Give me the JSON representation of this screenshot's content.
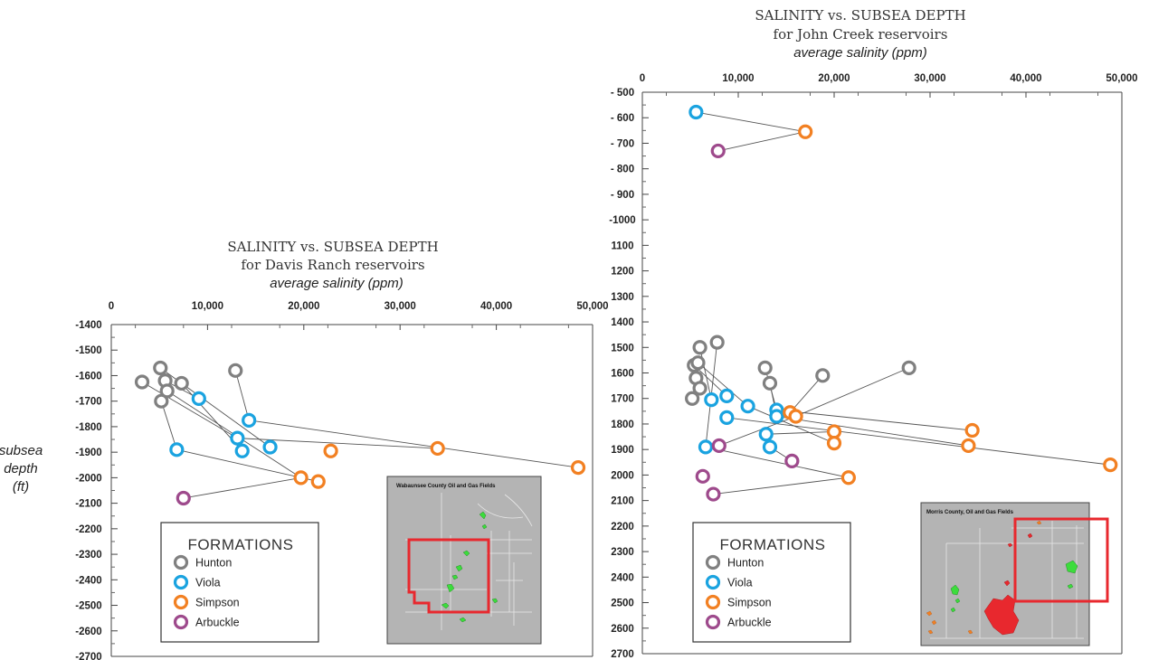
{
  "ylabel_lines": [
    "subsea",
    "depth",
    "(ft)"
  ],
  "colors": {
    "Hunton": "#808080",
    "Viola": "#1aa3e0",
    "Simpson": "#f28022",
    "Arbuckle": "#9e4a8c",
    "map_bg": "#b4b4b4",
    "map_highlight": "#e8282e",
    "field_green": "#3cdc3c"
  },
  "legend": {
    "title": "FORMATIONS",
    "items": [
      "Hunton",
      "Viola",
      "Simpson",
      "Arbuckle"
    ]
  },
  "chart_data": [
    {
      "type": "scatter",
      "title": "SALINITY vs. SUBSEA DEPTH",
      "subtitle": "for Davis Ranch reservoirs",
      "xlabel": "average salinity (ppm)",
      "ylabel": "subsea depth (ft)",
      "xlim": [
        0,
        50000
      ],
      "ylim": [
        -2700,
        -1400
      ],
      "x_ticks": [
        0,
        10000,
        20000,
        30000,
        40000,
        50000
      ],
      "x_tick_labels": [
        "0",
        "10,000",
        "20,000",
        "30,000",
        "40,000",
        "50,000"
      ],
      "y_ticks": [
        -1400,
        -1500,
        -1600,
        -1700,
        -1800,
        -1900,
        -2000,
        -2100,
        -2200,
        -2300,
        -2400,
        -2500,
        -2600,
        -2700
      ],
      "y_tick_labels": [
        "-1400",
        "-1500",
        "-1600",
        "-1700",
        "-1800",
        "-1900",
        "-2000",
        "-2100",
        "-2200",
        "-2300",
        "-2400",
        "-2500",
        "-2600",
        "-2700"
      ],
      "series": [
        {
          "name": "Hunton",
          "points": [
            [
              3200,
              -1625
            ],
            [
              5100,
              -1570
            ],
            [
              5600,
              -1620
            ],
            [
              5800,
              -1660
            ],
            [
              7300,
              -1630
            ],
            [
              5200,
              -1700
            ],
            [
              12900,
              -1580
            ]
          ]
        },
        {
          "name": "Viola",
          "points": [
            [
              9100,
              -1690
            ],
            [
              14300,
              -1775
            ],
            [
              13100,
              -1845
            ],
            [
              13600,
              -1895
            ],
            [
              16500,
              -1880
            ],
            [
              6800,
              -1890
            ]
          ]
        },
        {
          "name": "Simpson",
          "points": [
            [
              22800,
              -1895
            ],
            [
              33900,
              -1885
            ],
            [
              48500,
              -1960
            ],
            [
              19700,
              -2000
            ],
            [
              21500,
              -2015
            ]
          ]
        },
        {
          "name": "Arbuckle",
          "points": [
            [
              7500,
              -2080
            ]
          ]
        }
      ],
      "connections": [
        [
          [
            3200,
            -1625
          ],
          [
            13100,
            -1845
          ]
        ],
        [
          [
            5100,
            -1570
          ],
          [
            16500,
            -1880
          ]
        ],
        [
          [
            5600,
            -1620
          ],
          [
            9100,
            -1690
          ]
        ],
        [
          [
            5800,
            -1660
          ],
          [
            19700,
            -2000
          ]
        ],
        [
          [
            7300,
            -1630
          ],
          [
            13600,
            -1895
          ]
        ],
        [
          [
            12900,
            -1580
          ],
          [
            14300,
            -1775
          ]
        ],
        [
          [
            14300,
            -1775
          ],
          [
            48500,
            -1960
          ]
        ],
        [
          [
            13100,
            -1845
          ],
          [
            33900,
            -1885
          ]
        ],
        [
          [
            6800,
            -1890
          ],
          [
            21500,
            -2015
          ]
        ],
        [
          [
            5200,
            -1700
          ],
          [
            6800,
            -1890
          ]
        ],
        [
          [
            19700,
            -2000
          ],
          [
            7500,
            -2080
          ]
        ]
      ],
      "map_title": "Wabaunsee County Oil and Gas Fields"
    },
    {
      "type": "scatter",
      "title": "SALINITY vs. SUBSEA DEPTH",
      "subtitle": "for John Creek reservoirs",
      "xlabel": "average salinity (ppm)",
      "xlim": [
        0,
        50000
      ],
      "ylim": [
        -2700,
        -500
      ],
      "x_ticks": [
        0,
        10000,
        20000,
        30000,
        40000,
        50000
      ],
      "x_tick_labels": [
        "0",
        "10,000",
        "20,000",
        "30,000",
        "40,000",
        "50,000"
      ],
      "y_ticks": [
        -500,
        -600,
        -700,
        -800,
        -900,
        -1000,
        -1100,
        -1200,
        -1300,
        -1400,
        -1500,
        -1600,
        -1700,
        -1800,
        -1900,
        -2000,
        -2100,
        -2200,
        -2300,
        -2400,
        -2500,
        -2600,
        -2700
      ],
      "y_tick_labels": [
        "- 500",
        "- 600",
        "- 700",
        "- 800",
        "- 900",
        "-1000",
        "1100",
        "1200",
        "1300",
        "1400",
        "1500",
        "1600",
        "1700",
        "1800",
        "1900",
        "2000",
        "2100",
        "2200",
        "2300",
        "2400",
        "2500",
        "2600",
        "2700"
      ],
      "series": [
        {
          "name": "Hunton",
          "points": [
            [
              6000,
              -1500
            ],
            [
              7800,
              -1480
            ],
            [
              5400,
              -1570
            ],
            [
              5800,
              -1560
            ],
            [
              5600,
              -1620
            ],
            [
              6000,
              -1660
            ],
            [
              5200,
              -1700
            ],
            [
              12800,
              -1580
            ],
            [
              13300,
              -1640
            ],
            [
              18800,
              -1610
            ],
            [
              27800,
              -1580
            ]
          ]
        },
        {
          "name": "Viola",
          "points": [
            [
              5600,
              -578
            ],
            [
              8800,
              -1690
            ],
            [
              7200,
              -1705
            ],
            [
              8800,
              -1775
            ],
            [
              11000,
              -1730
            ],
            [
              14000,
              -1745
            ],
            [
              14000,
              -1770
            ],
            [
              12900,
              -1840
            ],
            [
              13300,
              -1890
            ],
            [
              6600,
              -1890
            ]
          ]
        },
        {
          "name": "Simpson",
          "points": [
            [
              17000,
              -655
            ],
            [
              15400,
              -1755
            ],
            [
              16000,
              -1770
            ],
            [
              20000,
              -1830
            ],
            [
              34400,
              -1825
            ],
            [
              34000,
              -1885
            ],
            [
              20000,
              -1875
            ],
            [
              48800,
              -1960
            ],
            [
              21500,
              -2010
            ]
          ]
        },
        {
          "name": "Arbuckle",
          "points": [
            [
              7900,
              -730
            ],
            [
              8000,
              -1885
            ],
            [
              15600,
              -1945
            ],
            [
              6300,
              -2005
            ],
            [
              7400,
              -2075
            ]
          ]
        }
      ],
      "connections": [
        [
          [
            5600,
            -578
          ],
          [
            17000,
            -655
          ]
        ],
        [
          [
            17000,
            -655
          ],
          [
            7900,
            -730
          ]
        ],
        [
          [
            6000,
            -1500
          ],
          [
            7200,
            -1705
          ]
        ],
        [
          [
            7800,
            -1480
          ],
          [
            6600,
            -1890
          ]
        ],
        [
          [
            5400,
            -1570
          ],
          [
            8800,
            -1690
          ]
        ],
        [
          [
            5800,
            -1560
          ],
          [
            11000,
            -1730
          ]
        ],
        [
          [
            12800,
            -1580
          ],
          [
            14000,
            -1745
          ]
        ],
        [
          [
            13300,
            -1640
          ],
          [
            14000,
            -1770
          ]
        ],
        [
          [
            18800,
            -1610
          ],
          [
            15400,
            -1755
          ]
        ],
        [
          [
            27800,
            -1580
          ],
          [
            16000,
            -1770
          ]
        ],
        [
          [
            14000,
            -1745
          ],
          [
            34400,
            -1825
          ]
        ],
        [
          [
            14000,
            -1770
          ],
          [
            34000,
            -1885
          ]
        ],
        [
          [
            8800,
            -1775
          ],
          [
            48800,
            -1960
          ]
        ],
        [
          [
            11000,
            -1730
          ],
          [
            20000,
            -1875
          ]
        ],
        [
          [
            12900,
            -1840
          ],
          [
            20000,
            -1830
          ]
        ],
        [
          [
            16000,
            -1770
          ],
          [
            8000,
            -1885
          ]
        ],
        [
          [
            6600,
            -1890
          ],
          [
            21500,
            -2010
          ]
        ],
        [
          [
            21500,
            -2010
          ],
          [
            7400,
            -2075
          ]
        ],
        [
          [
            13300,
            -1890
          ],
          [
            15600,
            -1945
          ]
        ]
      ],
      "map_title": "Morris County, Oil and Gas Fields"
    }
  ]
}
